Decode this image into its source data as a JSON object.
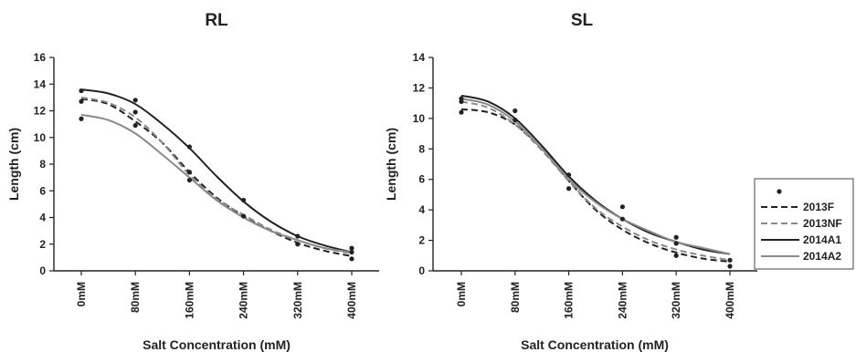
{
  "chart_data": [
    {
      "type": "line",
      "title": "RL",
      "xlabel": "Salt Concentration (mM)",
      "ylabel": "Length (cm)",
      "categories": [
        "0mM",
        "80mM",
        "160mM",
        "240mM",
        "320mM",
        "400mM"
      ],
      "x": [
        0,
        80,
        160,
        240,
        320,
        400
      ],
      "ylim": [
        0,
        16
      ],
      "yticks": [
        0,
        2,
        4,
        6,
        8,
        10,
        12,
        14,
        16
      ],
      "points": [
        {
          "x": 0,
          "y": 13.5
        },
        {
          "x": 0,
          "y": 12.7
        },
        {
          "x": 0,
          "y": 11.4
        },
        {
          "x": 80,
          "y": 12.8
        },
        {
          "x": 80,
          "y": 11.9
        },
        {
          "x": 80,
          "y": 10.9
        },
        {
          "x": 160,
          "y": 9.3
        },
        {
          "x": 160,
          "y": 7.4
        },
        {
          "x": 160,
          "y": 6.8
        },
        {
          "x": 240,
          "y": 5.3
        },
        {
          "x": 240,
          "y": 4.1
        },
        {
          "x": 320,
          "y": 2.6
        },
        {
          "x": 320,
          "y": 2.0
        },
        {
          "x": 400,
          "y": 1.7
        },
        {
          "x": 400,
          "y": 1.4
        },
        {
          "x": 400,
          "y": 0.9
        }
      ],
      "series": [
        {
          "name": "2013F",
          "style": "dashed",
          "color": "#222222",
          "x": [
            0,
            40,
            80,
            120,
            160,
            200,
            240,
            280,
            320,
            360,
            400
          ],
          "values": [
            12.9,
            12.5,
            11.2,
            9.6,
            7.4,
            5.5,
            4.1,
            3.0,
            2.1,
            1.5,
            1.1
          ]
        },
        {
          "name": "2013NF",
          "style": "dashed",
          "color": "#8a8a8a",
          "x": [
            0,
            40,
            80,
            120,
            160,
            200,
            240,
            280,
            320,
            360,
            400
          ],
          "values": [
            13.0,
            12.6,
            11.5,
            9.6,
            7.2,
            5.4,
            4.2,
            3.1,
            2.3,
            1.7,
            1.3
          ]
        },
        {
          "name": "2014A1",
          "style": "solid",
          "color": "#222222",
          "x": [
            0,
            40,
            80,
            120,
            160,
            200,
            240,
            280,
            320,
            360,
            400
          ],
          "values": [
            13.6,
            13.3,
            12.5,
            11.0,
            9.2,
            7.1,
            5.2,
            3.7,
            2.6,
            1.9,
            1.4
          ]
        },
        {
          "name": "2014A2",
          "style": "solid",
          "color": "#8a8a8a",
          "x": [
            0,
            40,
            80,
            120,
            160,
            200,
            240,
            280,
            320,
            360,
            400
          ],
          "values": [
            11.7,
            11.3,
            10.3,
            8.7,
            7.0,
            5.3,
            4.0,
            3.0,
            2.3,
            1.7,
            1.4
          ]
        }
      ]
    },
    {
      "type": "line",
      "title": "SL",
      "xlabel": "Salt Concentration (mM)",
      "ylabel": "Length (cm)",
      "categories": [
        "0mM",
        "80mM",
        "160mM",
        "240mM",
        "320mM",
        "400mM"
      ],
      "x": [
        0,
        80,
        160,
        240,
        320,
        400
      ],
      "ylim": [
        0,
        14
      ],
      "yticks": [
        0,
        2,
        4,
        6,
        8,
        10,
        12,
        14
      ],
      "points": [
        {
          "x": 0,
          "y": 11.3
        },
        {
          "x": 0,
          "y": 11.1
        },
        {
          "x": 0,
          "y": 10.4
        },
        {
          "x": 80,
          "y": 10.5
        },
        {
          "x": 80,
          "y": 9.9
        },
        {
          "x": 160,
          "y": 6.3
        },
        {
          "x": 160,
          "y": 5.4
        },
        {
          "x": 240,
          "y": 4.2
        },
        {
          "x": 240,
          "y": 3.4
        },
        {
          "x": 320,
          "y": 2.2
        },
        {
          "x": 320,
          "y": 1.8
        },
        {
          "x": 320,
          "y": 1.0
        },
        {
          "x": 400,
          "y": 0.7
        },
        {
          "x": 400,
          "y": 0.3
        }
      ],
      "series": [
        {
          "name": "2013F",
          "style": "dashed",
          "color": "#222222",
          "x": [
            0,
            40,
            80,
            120,
            160,
            200,
            240,
            280,
            320,
            360,
            400
          ],
          "values": [
            10.6,
            10.4,
            9.6,
            8.0,
            5.9,
            4.0,
            2.7,
            1.8,
            1.2,
            0.8,
            0.6
          ]
        },
        {
          "name": "2013NF",
          "style": "dashed",
          "color": "#8a8a8a",
          "x": [
            0,
            40,
            80,
            120,
            160,
            200,
            240,
            280,
            320,
            360,
            400
          ],
          "values": [
            11.1,
            10.7,
            9.6,
            7.9,
            5.9,
            4.1,
            2.9,
            2.0,
            1.4,
            1.0,
            0.7
          ]
        },
        {
          "name": "2014A1",
          "style": "solid",
          "color": "#222222",
          "x": [
            0,
            40,
            80,
            120,
            160,
            200,
            240,
            280,
            320,
            360,
            400
          ],
          "values": [
            11.5,
            11.1,
            10.0,
            8.2,
            6.2,
            4.6,
            3.4,
            2.5,
            1.9,
            1.4,
            1.1
          ]
        },
        {
          "name": "2014A2",
          "style": "solid",
          "color": "#8a8a8a",
          "x": [
            0,
            40,
            80,
            120,
            160,
            200,
            240,
            280,
            320,
            360,
            400
          ],
          "values": [
            11.3,
            10.9,
            9.8,
            8.0,
            6.0,
            4.5,
            3.4,
            2.6,
            1.9,
            1.5,
            1.1
          ]
        }
      ]
    }
  ],
  "legend": {
    "marker_color": "#222222",
    "items": [
      {
        "label": "2013F",
        "style": "dashed",
        "color": "#222222"
      },
      {
        "label": "2013NF",
        "style": "dashed",
        "color": "#8a8a8a"
      },
      {
        "label": "2014A1",
        "style": "solid",
        "color": "#222222"
      },
      {
        "label": "2014A2",
        "style": "solid",
        "color": "#8a8a8a"
      }
    ]
  }
}
